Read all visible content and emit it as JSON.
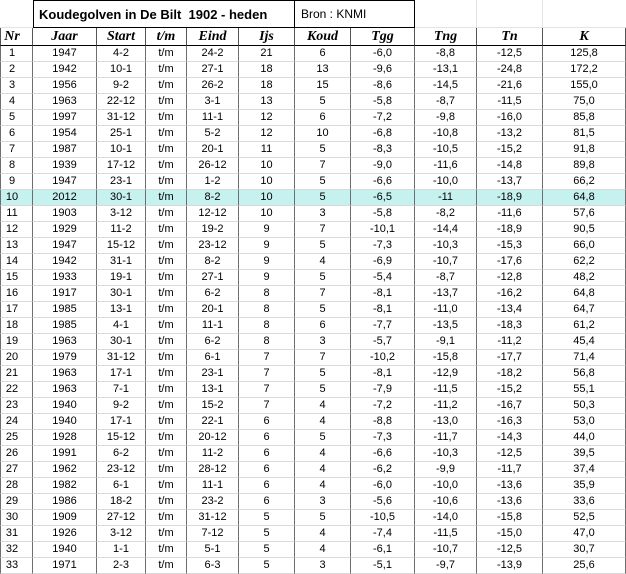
{
  "sheet": {
    "title": "Koudegolven in De Bilt  1902 - heden",
    "source": "Bron : KNMI",
    "columns": [
      "Nr",
      "Jaar",
      "Start",
      "t/m",
      "Eind",
      "Ijs",
      "Koud",
      "Tgg",
      "Tng",
      "Tn",
      "K"
    ],
    "highlight_row_nr": 10,
    "highlight_color": "#c5f2ef",
    "rows": [
      [
        "1",
        "1947",
        "4-2",
        "t/m",
        "24-2",
        "21",
        "6",
        "-6,0",
        "-8,8",
        "-12,5",
        "125,8"
      ],
      [
        "2",
        "1942",
        "10-1",
        "t/m",
        "27-1",
        "18",
        "13",
        "-9,6",
        "-13,1",
        "-24,8",
        "172,2"
      ],
      [
        "3",
        "1956",
        "9-2",
        "t/m",
        "26-2",
        "18",
        "15",
        "-8,6",
        "-14,5",
        "-21,6",
        "155,0"
      ],
      [
        "4",
        "1963",
        "22-12",
        "t/m",
        "3-1",
        "13",
        "5",
        "-5,8",
        "-8,7",
        "-11,5",
        "75,0"
      ],
      [
        "5",
        "1997",
        "31-12",
        "t/m",
        "11-1",
        "12",
        "6",
        "-7,2",
        "-9,8",
        "-16,0",
        "85,8"
      ],
      [
        "6",
        "1954",
        "25-1",
        "t/m",
        "5-2",
        "12",
        "10",
        "-6,8",
        "-10,8",
        "-13,2",
        "81,5"
      ],
      [
        "7",
        "1987",
        "10-1",
        "t/m",
        "20-1",
        "11",
        "5",
        "-8,3",
        "-10,5",
        "-15,2",
        "91,8"
      ],
      [
        "8",
        "1939",
        "17-12",
        "t/m",
        "26-12",
        "10",
        "7",
        "-9,0",
        "-11,6",
        "-14,8",
        "89,8"
      ],
      [
        "9",
        "1947",
        "23-1",
        "t/m",
        "1-2",
        "10",
        "5",
        "-6,6",
        "-10,0",
        "-13,7",
        "66,2"
      ],
      [
        "10",
        "2012",
        "30-1",
        "t/m",
        "8-2",
        "10",
        "5",
        "-6,5",
        "-11",
        "-18,9",
        "64,8"
      ],
      [
        "11",
        "1903",
        "3-12",
        "t/m",
        "12-12",
        "10",
        "3",
        "-5,8",
        "-8,2",
        "-11,6",
        "57,6"
      ],
      [
        "12",
        "1929",
        "11-2",
        "t/m",
        "19-2",
        "9",
        "7",
        "-10,1",
        "-14,4",
        "-18,9",
        "90,5"
      ],
      [
        "13",
        "1947",
        "15-12",
        "t/m",
        "23-12",
        "9",
        "5",
        "-7,3",
        "-10,3",
        "-15,3",
        "66,0"
      ],
      [
        "14",
        "1942",
        "31-1",
        "t/m",
        "8-2",
        "9",
        "4",
        "-6,9",
        "-10,7",
        "-17,6",
        "62,2"
      ],
      [
        "15",
        "1933",
        "19-1",
        "t/m",
        "27-1",
        "9",
        "5",
        "-5,4",
        "-8,7",
        "-12,8",
        "48,2"
      ],
      [
        "16",
        "1917",
        "30-1",
        "t/m",
        "6-2",
        "8",
        "7",
        "-8,1",
        "-13,7",
        "-16,2",
        "64,8"
      ],
      [
        "17",
        "1985",
        "13-1",
        "t/m",
        "20-1",
        "8",
        "5",
        "-8,1",
        "-11,0",
        "-13,4",
        "64,7"
      ],
      [
        "18",
        "1985",
        "4-1",
        "t/m",
        "11-1",
        "8",
        "6",
        "-7,7",
        "-13,5",
        "-18,3",
        "61,2"
      ],
      [
        "19",
        "1963",
        "30-1",
        "t/m",
        "6-2",
        "8",
        "3",
        "-5,7",
        "-9,1",
        "-11,2",
        "45,4"
      ],
      [
        "20",
        "1979",
        "31-12",
        "t/m",
        "6-1",
        "7",
        "7",
        "-10,2",
        "-15,8",
        "-17,7",
        "71,4"
      ],
      [
        "21",
        "1963",
        "17-1",
        "t/m",
        "23-1",
        "7",
        "5",
        "-8,1",
        "-12,9",
        "-18,2",
        "56,8"
      ],
      [
        "22",
        "1963",
        "7-1",
        "t/m",
        "13-1",
        "7",
        "5",
        "-7,9",
        "-11,5",
        "-15,2",
        "55,1"
      ],
      [
        "23",
        "1940",
        "9-2",
        "t/m",
        "15-2",
        "7",
        "4",
        "-7,2",
        "-11,2",
        "-16,7",
        "50,3"
      ],
      [
        "24",
        "1940",
        "17-1",
        "t/m",
        "22-1",
        "6",
        "4",
        "-8,8",
        "-13,0",
        "-16,3",
        "53,0"
      ],
      [
        "25",
        "1928",
        "15-12",
        "t/m",
        "20-12",
        "6",
        "5",
        "-7,3",
        "-11,7",
        "-14,3",
        "44,0"
      ],
      [
        "26",
        "1991",
        "6-2",
        "t/m",
        "11-2",
        "6",
        "4",
        "-6,6",
        "-10,3",
        "-12,5",
        "39,5"
      ],
      [
        "27",
        "1962",
        "23-12",
        "t/m",
        "28-12",
        "6",
        "4",
        "-6,2",
        "-9,9",
        "-11,7",
        "37,4"
      ],
      [
        "28",
        "1982",
        "6-1",
        "t/m",
        "11-1",
        "6",
        "4",
        "-6,0",
        "-10,0",
        "-13,6",
        "35,9"
      ],
      [
        "29",
        "1986",
        "18-2",
        "t/m",
        "23-2",
        "6",
        "3",
        "-5,6",
        "-10,6",
        "-13,6",
        "33,6"
      ],
      [
        "30",
        "1909",
        "27-12",
        "t/m",
        "31-12",
        "5",
        "5",
        "-10,5",
        "-14,0",
        "-15,8",
        "52,5"
      ],
      [
        "31",
        "1926",
        "3-12",
        "t/m",
        "7-12",
        "5",
        "4",
        "-7,4",
        "-11,5",
        "-15,0",
        "47,0"
      ],
      [
        "32",
        "1940",
        "1-1",
        "t/m",
        "5-1",
        "5",
        "4",
        "-6,1",
        "-10,7",
        "-12,5",
        "30,7"
      ],
      [
        "33",
        "1971",
        "2-3",
        "t/m",
        "6-3",
        "5",
        "3",
        "-5,1",
        "-9,7",
        "-13,9",
        "25,6"
      ]
    ]
  }
}
